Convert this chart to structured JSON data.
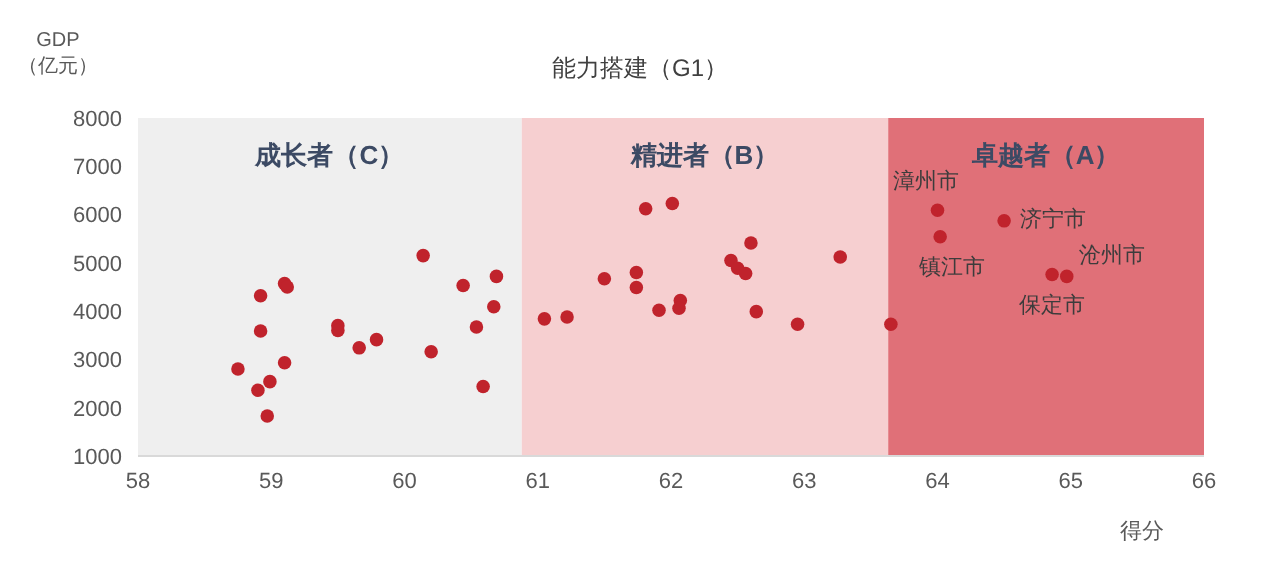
{
  "chart_data": {
    "type": "scatter",
    "title": "能力搭建（G1）",
    "xlabel": "得分",
    "ylabel": "GDP\n（亿元）",
    "x": [
      58.75,
      58.92,
      58.92,
      59.1,
      59.12,
      59.1,
      58.9,
      58.99,
      58.97,
      59.5,
      59.5,
      59.66,
      59.79,
      60.14,
      60.2,
      60.44,
      60.69,
      60.67,
      60.54,
      60.59,
      61.05,
      61.22,
      61.5,
      61.74,
      61.74,
      61.81,
      62.01,
      61.91,
      62.07,
      62.06,
      62.45,
      62.5,
      62.56,
      62.6,
      62.64,
      62.95,
      63.27,
      63.65,
      64.0,
      64.02,
      64.5,
      64.86,
      64.97
    ],
    "values": [
      2800,
      4320,
      3590,
      4570,
      4500,
      2930,
      2360,
      2540,
      1830,
      3700,
      3600,
      3240,
      3410,
      5150,
      3160,
      4530,
      4720,
      4090,
      3670,
      2440,
      3840,
      3880,
      4670,
      4800,
      4490,
      6120,
      6230,
      4020,
      4220,
      4060,
      5050,
      4890,
      4780,
      5410,
      3990,
      3730,
      5120,
      3730,
      6090,
      5540,
      5870,
      4760,
      4720
    ],
    "color": "#c0232c",
    "marker": "circle",
    "xlim": [
      58,
      66
    ],
    "xticks": [
      58,
      59,
      60,
      61,
      62,
      63,
      64,
      65,
      66
    ],
    "ylim": [
      1000,
      8000
    ],
    "yticks": [
      1000,
      2000,
      3000,
      4000,
      5000,
      6000,
      7000,
      8000
    ],
    "grid": false,
    "legend": false,
    "bands": [
      {
        "axis": "x",
        "from": 58,
        "to": 60.88,
        "label": "成长者（C）",
        "color": "#efefef"
      },
      {
        "axis": "x",
        "from": 60.88,
        "to": 63.63,
        "label": "精进者（B）",
        "color": "#f6cfd0"
      },
      {
        "axis": "x",
        "from": 63.63,
        "to": 66,
        "label": "卓越者（A）",
        "color": "#e07078"
      }
    ],
    "annotations": [
      {
        "text": "漳州市",
        "x": 64.0,
        "y": 6090
      },
      {
        "text": "镇江市",
        "x": 64.02,
        "y": 5540
      },
      {
        "text": "济宁市",
        "x": 64.5,
        "y": 5870
      },
      {
        "text": "保定市",
        "x": 64.86,
        "y": 4760
      },
      {
        "text": "沧州市",
        "x": 64.97,
        "y": 4720
      }
    ]
  }
}
